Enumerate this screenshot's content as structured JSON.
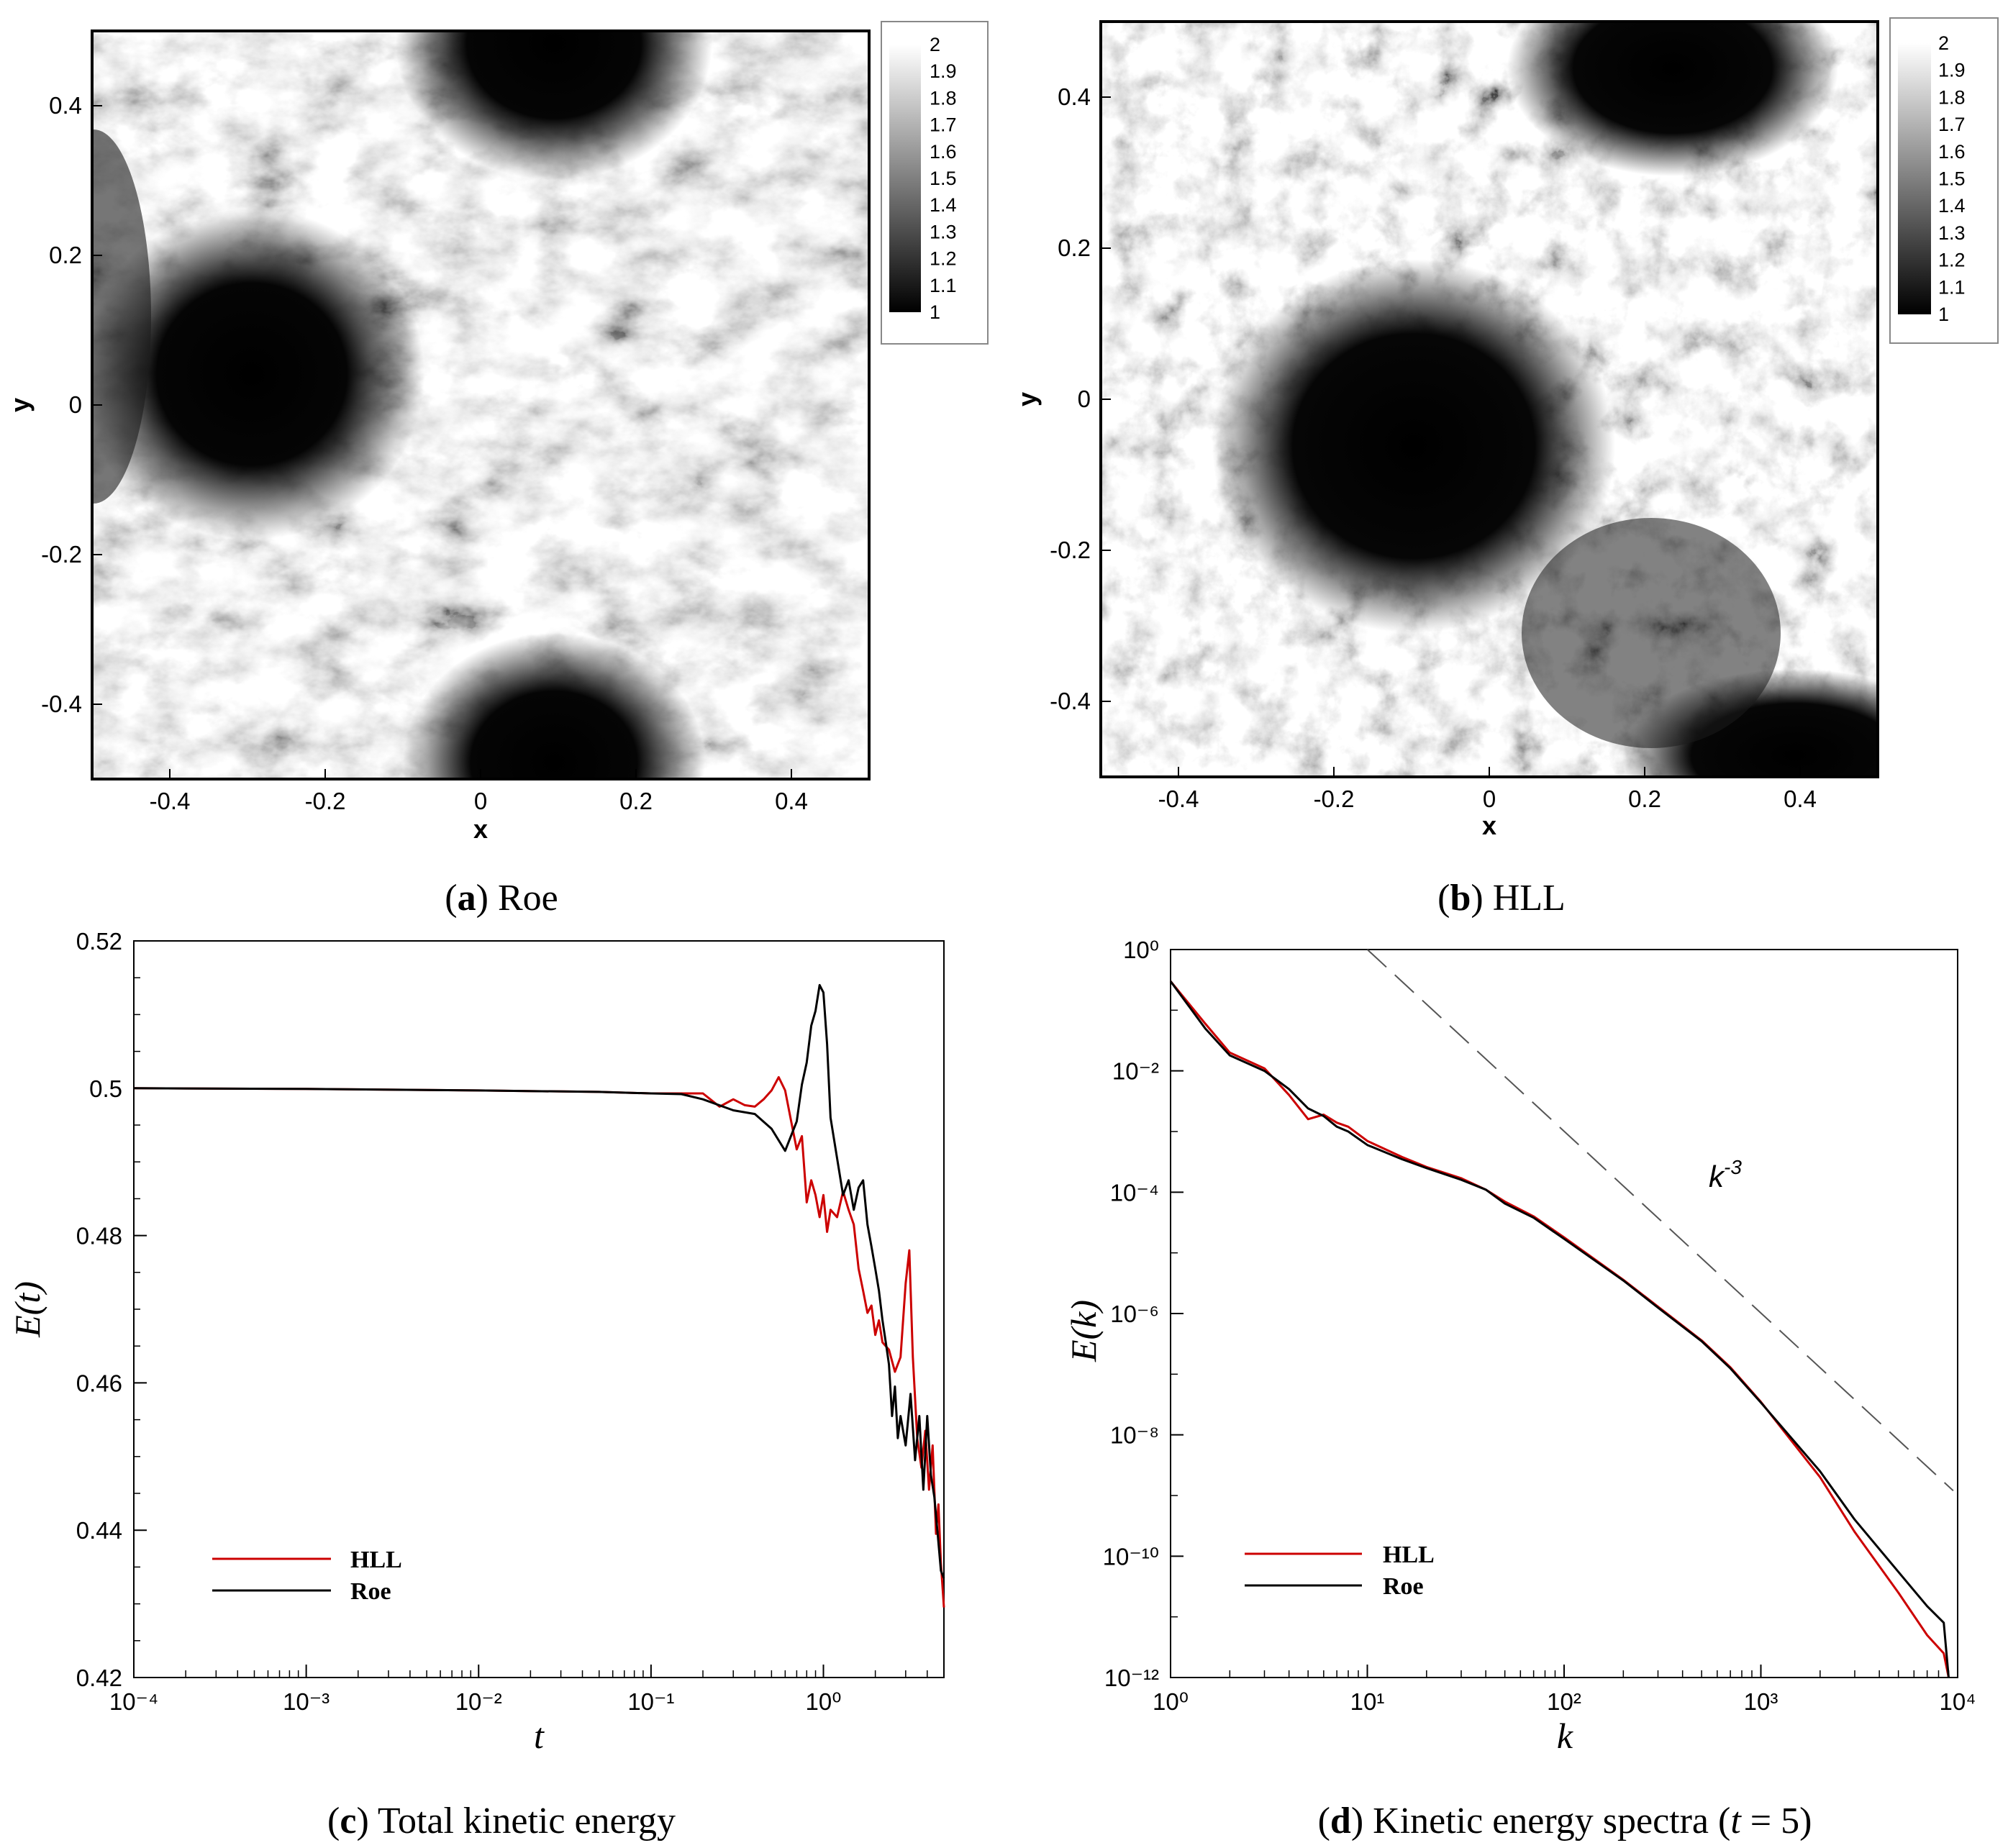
{
  "panels": {
    "a": {
      "letter": "a",
      "title": "Roe"
    },
    "b": {
      "letter": "b",
      "title": "HLL"
    },
    "c": {
      "letter": "c",
      "title": "Total kinetic energy"
    },
    "d": {
      "letter": "d",
      "title": "Kinetic energy spectra (t = 5)",
      "title_pre": "Kinetic energy spectra (",
      "title_var": "t",
      "title_post": " = 5)"
    }
  },
  "colormap": {
    "ticks": [
      "2",
      "1.9",
      "1.8",
      "1.7",
      "1.6",
      "1.5",
      "1.4",
      "1.3",
      "1.2",
      "1.1",
      "1"
    ],
    "range": [
      1,
      2
    ],
    "colors": {
      "low": "#000000",
      "high": "#ffffff"
    }
  },
  "density_axes": {
    "xlabel": "x",
    "ylabel": "y",
    "xticks": [
      "-0.4",
      "-0.2",
      "0",
      "0.2",
      "0.4"
    ],
    "yticks": [
      "0.4",
      "0.2",
      "0",
      "-0.2",
      "-0.4"
    ]
  },
  "chart_data": [
    {
      "id": "c",
      "type": "line",
      "xscale": "log",
      "xlabel": "t",
      "ylabel": "E(t)",
      "xlim": [
        0.0001,
        5
      ],
      "ylim": [
        0.42,
        0.52
      ],
      "xtick_labels": [
        "10⁻⁴",
        "10⁻³",
        "10⁻²",
        "10⁻¹",
        "10⁰"
      ],
      "ytick_labels": [
        "0.52",
        "0.5",
        "0.48",
        "0.46",
        "0.44",
        "0.42"
      ],
      "legend_position": "lower-left",
      "series": [
        {
          "name": "HLL",
          "color": "#cc0000",
          "points": [
            [
              0.0001,
              0.5
            ],
            [
              0.001,
              0.4999
            ],
            [
              0.01,
              0.4997
            ],
            [
              0.05,
              0.4995
            ],
            [
              0.1,
              0.4993
            ],
            [
              0.15,
              0.4993
            ],
            [
              0.2,
              0.4993
            ],
            [
              0.25,
              0.4975
            ],
            [
              0.3,
              0.4985
            ],
            [
              0.35,
              0.4977
            ],
            [
              0.4,
              0.4975
            ],
            [
              0.45,
              0.4985
            ],
            [
              0.5,
              0.4997
            ],
            [
              0.55,
              0.5015
            ],
            [
              0.6,
              0.4997
            ],
            [
              0.65,
              0.4955
            ],
            [
              0.7,
              0.4917
            ],
            [
              0.75,
              0.4935
            ],
            [
              0.8,
              0.4845
            ],
            [
              0.85,
              0.4875
            ],
            [
              0.9,
              0.4855
            ],
            [
              0.95,
              0.4825
            ],
            [
              1.0,
              0.4855
            ],
            [
              1.05,
              0.4805
            ],
            [
              1.1,
              0.4835
            ],
            [
              1.2,
              0.4825
            ],
            [
              1.3,
              0.486
            ],
            [
              1.4,
              0.4835
            ],
            [
              1.5,
              0.4815
            ],
            [
              1.6,
              0.4755
            ],
            [
              1.7,
              0.4725
            ],
            [
              1.8,
              0.4695
            ],
            [
              1.9,
              0.4705
            ],
            [
              2.0,
              0.4665
            ],
            [
              2.1,
              0.4685
            ],
            [
              2.2,
              0.4655
            ],
            [
              2.4,
              0.4645
            ],
            [
              2.6,
              0.4615
            ],
            [
              2.8,
              0.4635
            ],
            [
              3.0,
              0.4735
            ],
            [
              3.15,
              0.478
            ],
            [
              3.3,
              0.4635
            ],
            [
              3.5,
              0.4525
            ],
            [
              3.7,
              0.4485
            ],
            [
              3.9,
              0.4535
            ],
            [
              4.1,
              0.4455
            ],
            [
              4.3,
              0.4515
            ],
            [
              4.5,
              0.4395
            ],
            [
              4.65,
              0.4435
            ],
            [
              4.8,
              0.4355
            ],
            [
              5.0,
              0.4295
            ]
          ]
        },
        {
          "name": "Roe",
          "color": "#000000",
          "points": [
            [
              0.0001,
              0.5
            ],
            [
              0.001,
              0.4999
            ],
            [
              0.01,
              0.4997
            ],
            [
              0.05,
              0.4995
            ],
            [
              0.1,
              0.4993
            ],
            [
              0.15,
              0.4992
            ],
            [
              0.2,
              0.4985
            ],
            [
              0.3,
              0.497
            ],
            [
              0.4,
              0.4965
            ],
            [
              0.5,
              0.4945
            ],
            [
              0.6,
              0.4915
            ],
            [
              0.7,
              0.4955
            ],
            [
              0.75,
              0.5005
            ],
            [
              0.8,
              0.5035
            ],
            [
              0.85,
              0.5085
            ],
            [
              0.9,
              0.5105
            ],
            [
              0.95,
              0.514
            ],
            [
              1.0,
              0.513
            ],
            [
              1.05,
              0.506
            ],
            [
              1.1,
              0.496
            ],
            [
              1.2,
              0.4905
            ],
            [
              1.3,
              0.4855
            ],
            [
              1.4,
              0.4875
            ],
            [
              1.5,
              0.4835
            ],
            [
              1.6,
              0.4865
            ],
            [
              1.7,
              0.4875
            ],
            [
              1.8,
              0.4815
            ],
            [
              1.9,
              0.4785
            ],
            [
              2.0,
              0.4755
            ],
            [
              2.1,
              0.4725
            ],
            [
              2.2,
              0.4685
            ],
            [
              2.3,
              0.4655
            ],
            [
              2.4,
              0.4625
            ],
            [
              2.5,
              0.4555
            ],
            [
              2.6,
              0.4595
            ],
            [
              2.7,
              0.4525
            ],
            [
              2.8,
              0.4555
            ],
            [
              3.0,
              0.4515
            ],
            [
              3.2,
              0.4585
            ],
            [
              3.4,
              0.4495
            ],
            [
              3.6,
              0.4555
            ],
            [
              3.8,
              0.4455
            ],
            [
              4.0,
              0.4555
            ],
            [
              4.2,
              0.4475
            ],
            [
              4.4,
              0.4445
            ],
            [
              4.6,
              0.4395
            ],
            [
              4.8,
              0.4345
            ],
            [
              5.0,
              0.4335
            ]
          ]
        }
      ]
    },
    {
      "id": "d",
      "type": "line",
      "xscale": "log",
      "yscale": "log",
      "xlabel": "k",
      "ylabel": "E(k)",
      "xlim": [
        1,
        10000
      ],
      "ylim": [
        1e-12,
        1
      ],
      "xtick_labels": [
        "10⁰",
        "10¹",
        "10²",
        "10³",
        "10⁴"
      ],
      "ytick_labels": [
        "10⁰",
        "10⁻²",
        "10⁻⁴",
        "10⁻⁶",
        "10⁻⁸",
        "10⁻¹⁰",
        "10⁻¹²"
      ],
      "legend_position": "lower-left",
      "annotation": "k⁻³",
      "reference_line": {
        "slope": -3,
        "points": [
          [
            10,
            1
          ],
          [
            9500,
            1.2e-09
          ]
        ],
        "color": "#555555",
        "dashed": true
      },
      "series": [
        {
          "name": "HLL",
          "color": "#cc0000",
          "points": [
            [
              1,
              0.3
            ],
            [
              1.5,
              0.06
            ],
            [
              2,
              0.02
            ],
            [
              3,
              0.011
            ],
            [
              4,
              0.004
            ],
            [
              5,
              0.0016
            ],
            [
              6,
              0.0019
            ],
            [
              7,
              0.0014
            ],
            [
              8,
              0.0012
            ],
            [
              10,
              0.0007
            ],
            [
              15,
              0.00038
            ],
            [
              20,
              0.00026
            ],
            [
              30,
              0.00017
            ],
            [
              40,
              0.00011
            ],
            [
              50,
              7e-05
            ],
            [
              70,
              4e-05
            ],
            [
              100,
              1.8e-05
            ],
            [
              200,
              3.6e-06
            ],
            [
              300,
              1.3e-06
            ],
            [
              500,
              3.6e-07
            ],
            [
              700,
              1.3e-07
            ],
            [
              1000,
              3.5e-08
            ],
            [
              2000,
              2e-09
            ],
            [
              3000,
              2.5e-10
            ],
            [
              5000,
              2.5e-11
            ],
            [
              7000,
              5e-12
            ],
            [
              8500,
              2.5e-12
            ],
            [
              9000,
              1e-12
            ]
          ]
        },
        {
          "name": "Roe",
          "color": "#000000",
          "points": [
            [
              1,
              0.3
            ],
            [
              1.5,
              0.05
            ],
            [
              2,
              0.018
            ],
            [
              3,
              0.01
            ],
            [
              4,
              0.005
            ],
            [
              5,
              0.0024
            ],
            [
              6,
              0.0018
            ],
            [
              7,
              0.0012
            ],
            [
              8,
              0.001
            ],
            [
              10,
              0.0006
            ],
            [
              15,
              0.00035
            ],
            [
              20,
              0.00025
            ],
            [
              30,
              0.00016
            ],
            [
              40,
              0.00011
            ],
            [
              50,
              6.5e-05
            ],
            [
              70,
              3.8e-05
            ],
            [
              100,
              1.7e-05
            ],
            [
              200,
              3.5e-06
            ],
            [
              300,
              1.25e-06
            ],
            [
              500,
              3.5e-07
            ],
            [
              700,
              1.25e-07
            ],
            [
              1000,
              3.4e-08
            ],
            [
              2000,
              2.5e-09
            ],
            [
              3000,
              4e-10
            ],
            [
              5000,
              5.5e-11
            ],
            [
              7000,
              1.5e-11
            ],
            [
              8500,
              8e-12
            ],
            [
              9000,
              1e-12
            ]
          ]
        }
      ]
    }
  ]
}
